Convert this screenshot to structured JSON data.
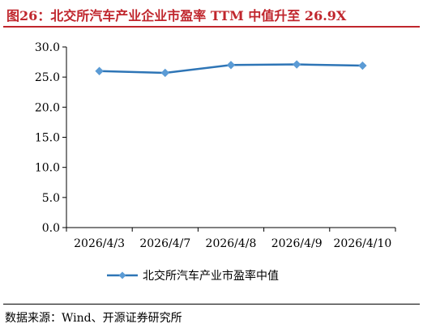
{
  "header": {
    "title": "图26：北交所汽车产业企业市盈率 TTM 中值升至 26.9X"
  },
  "footer": {
    "source": "数据来源：Wind、开源证券研究所"
  },
  "colors": {
    "title": "#c0262d",
    "series": "#2e75b6",
    "marker": "#5b9bd5"
  },
  "chart_data": {
    "type": "line",
    "categories": [
      "2026/4/3",
      "2026/4/7",
      "2026/4/8",
      "2026/4/9",
      "2026/4/10"
    ],
    "series": [
      {
        "name": "北交所汽车产业市盈率中值",
        "values": [
          26.0,
          25.7,
          27.0,
          27.1,
          26.9
        ]
      }
    ],
    "yticks": [
      "0.0",
      "5.0",
      "10.0",
      "15.0",
      "20.0",
      "25.0",
      "30.0"
    ],
    "ylim": [
      0,
      30
    ],
    "grid": false,
    "legend_position": "bottom"
  }
}
